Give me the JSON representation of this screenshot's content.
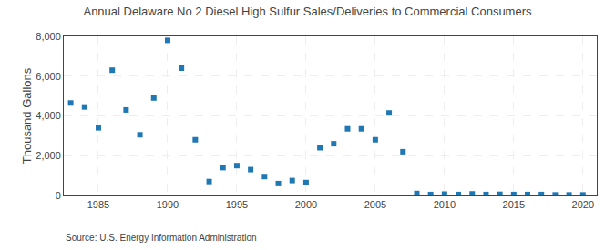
{
  "chart_data": {
    "type": "scatter",
    "title": "Annual Delaware No 2 Diesel High Sulfur Sales/Deliveries to Commercial Consumers",
    "ylabel": "Thousand Gallons",
    "annotations": [
      "Source: U.S. Energy Information Administration"
    ],
    "x": [
      1983,
      1984,
      1985,
      1986,
      1987,
      1988,
      1989,
      1990,
      1991,
      1992,
      1993,
      1994,
      1995,
      1996,
      1997,
      1998,
      1999,
      2000,
      2001,
      2002,
      2003,
      2004,
      2005,
      2006,
      2007,
      2008,
      2009,
      2010,
      2011,
      2012,
      2013,
      2014,
      2015,
      2016,
      2017,
      2018,
      2019,
      2020
    ],
    "values": [
      4650,
      4450,
      3400,
      6300,
      4300,
      3050,
      4900,
      7800,
      6400,
      2800,
      700,
      1400,
      1500,
      1300,
      950,
      600,
      750,
      650,
      2400,
      2600,
      3350,
      3350,
      2800,
      4150,
      2200,
      100,
      50,
      70,
      50,
      80,
      50,
      60,
      50,
      50,
      50,
      30,
      30,
      30
    ],
    "marker": "square",
    "xlim": [
      1982.5,
      2021
    ],
    "xticks": [
      1985,
      1990,
      1995,
      2000,
      2005,
      2010,
      2015,
      2020
    ],
    "ylim": [
      0,
      8000
    ],
    "yticks": [
      0,
      {
        "value": 2000,
        "label": "2,000"
      },
      {
        "value": 4000,
        "label": "4,000"
      },
      {
        "value": 6000,
        "label": "6,000"
      },
      {
        "value": 8000,
        "label": "8,000"
      }
    ],
    "grid": true
  }
}
